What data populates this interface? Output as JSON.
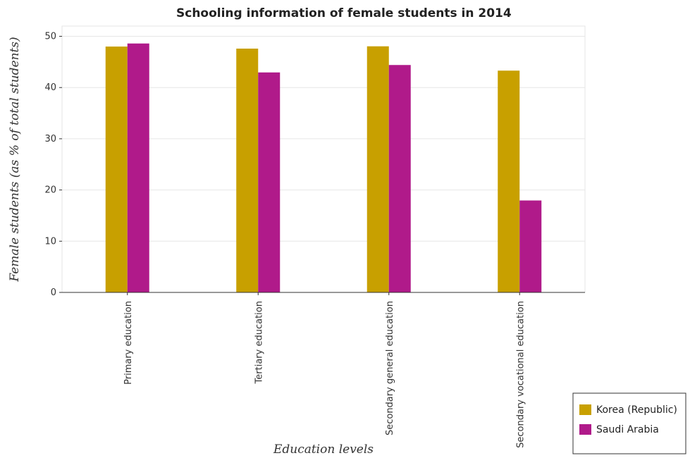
{
  "chart_data": {
    "type": "bar",
    "title": "Schooling information of female students in 2014",
    "xlabel": "Education levels",
    "ylabel": "Female students (as % of total students)",
    "categories": [
      "Primary education",
      "Tertiary education",
      "Secondary general education",
      "Secondary vocational education"
    ],
    "series": [
      {
        "name": "Korea (Republic)",
        "color": "#c8a000",
        "values": [
          48.0,
          47.6,
          48.05,
          43.3
        ]
      },
      {
        "name": "Saudi Arabia",
        "color": "#b01a8a",
        "values": [
          48.6,
          42.95,
          44.4,
          17.95
        ]
      }
    ],
    "ylim": [
      0,
      52
    ],
    "yticks": [
      0,
      10,
      20,
      30,
      40,
      50
    ],
    "grid": true,
    "legend_position": "bottom-right"
  }
}
